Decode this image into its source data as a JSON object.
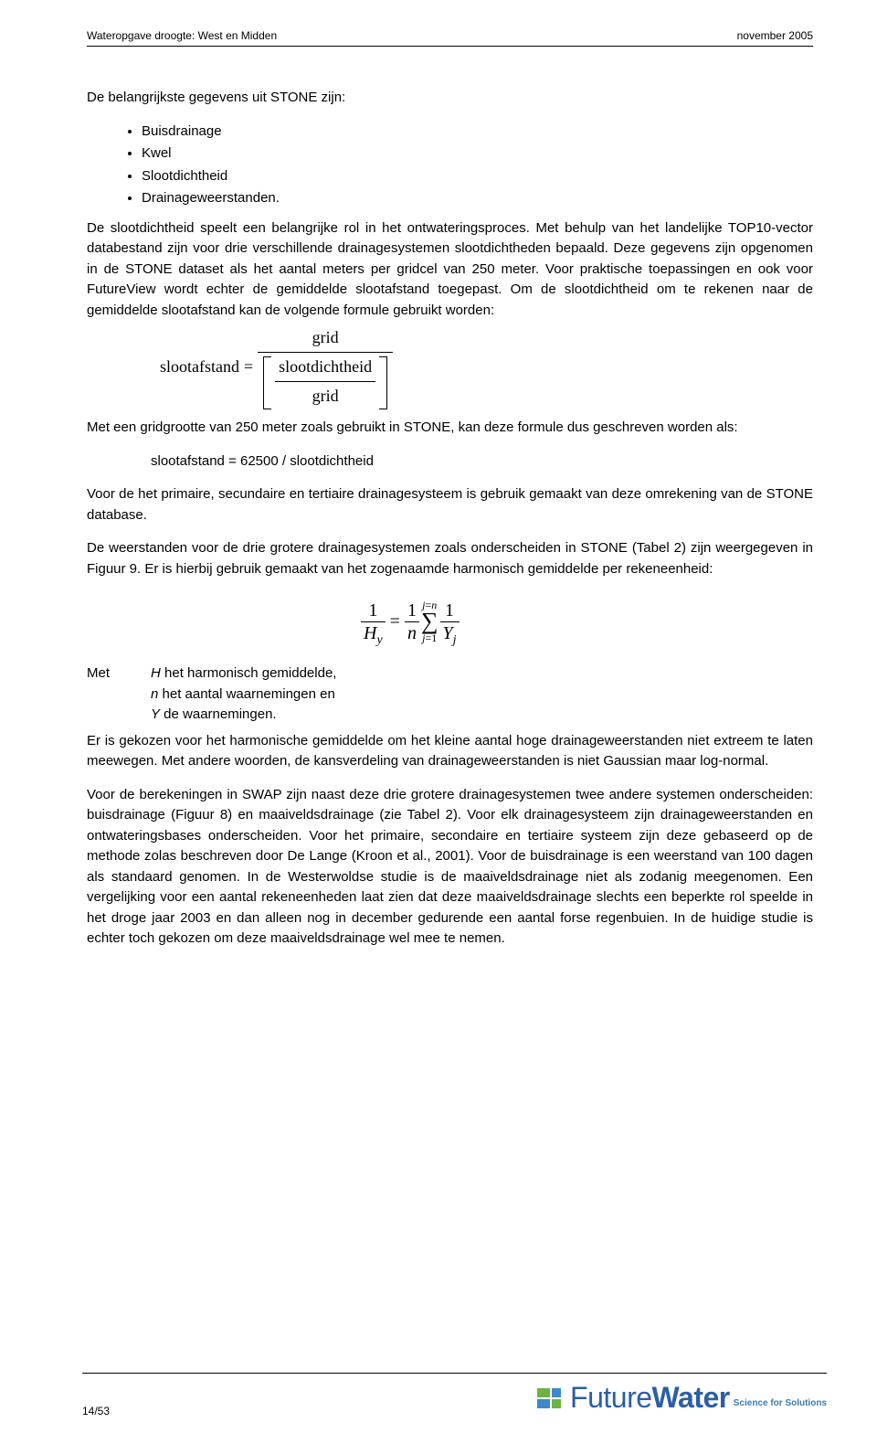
{
  "header": {
    "left": "Wateropgave droogte: West en Midden",
    "right": "november 2005"
  },
  "intro": "De belangrijkste gegevens uit STONE zijn:",
  "bullets": [
    "Buisdrainage",
    "Kwel",
    "Slootdichtheid",
    "Drainageweerstanden."
  ],
  "para1": "De slootdichtheid speelt een belangrijke rol in het ontwateringsproces. Met behulp van het landelijke TOP10-vector databestand zijn voor drie verschillende drainagesystemen slootdichtheden bepaald. Deze gegevens zijn opgenomen in de STONE dataset als het aantal meters per gridcel van 250 meter. Voor praktische toepassingen en ook voor FutureView wordt echter de gemiddelde slootafstand toegepast. Om de slootdichtheid om te rekenen naar de gemiddelde slootafstand kan de volgende formule gebruikt worden:",
  "formula1": {
    "lhs": "slootafstand",
    "num": "grid",
    "den_num": "slootdichtheid",
    "den_den": "grid"
  },
  "para2": "Met een gridgrootte van 250 meter zoals gebruikt in STONE, kan deze formule dus geschreven worden als:",
  "formula2": "slootafstand = 62500 / slootdichtheid",
  "para3": "Voor de het primaire, secundaire en tertiaire drainagesysteem is gebruik gemaakt van deze omrekening van de STONE database.",
  "para4": "De weerstanden voor de drie grotere drainagesystemen zoals onderscheiden in STONE (Tabel 2) zijn weergegeven in Figuur 9. Er is hierbij gebruik gemaakt van het zogenaamde harmonisch gemiddelde per rekeneenheid:",
  "met_label": "Met",
  "met_line1_var": "H",
  "met_line1_text": " het harmonisch gemiddelde,",
  "met_line2_var": "n",
  "met_line2_text": " het aantal waarnemingen en",
  "met_line3_var": "Y",
  "met_line3_text": " de waarnemingen.",
  "para5": "Er is gekozen voor het harmonische gemiddelde om het kleine aantal hoge drainageweerstanden niet extreem te laten meewegen. Met andere woorden, de kansverdeling van drainageweerstanden is niet Gaussian maar log-normal.",
  "para6": "Voor de berekeningen in SWAP zijn naast deze drie grotere drainagesystemen twee andere systemen onderscheiden: buisdrainage (Figuur 8) en maaiveldsdrainage (zie Tabel 2). Voor elk drainagesysteem zijn drainageweerstanden en ontwateringsbases onderscheiden. Voor het primaire, secondaire en tertiaire systeem zijn deze gebaseerd op de methode zolas beschreven door De Lange (Kroon et al., 2001). Voor de buisdrainage is een weerstand van 100 dagen als standaard genomen. In de Westerwoldse studie is de maaiveldsdrainage niet als zodanig meegenomen. Een vergelijking voor een aantal rekeneenheden laat zien dat deze maaiveldsdrainage slechts een beperkte rol speelde in het droge jaar 2003 en dan alleen nog in december gedurende een aantal forse regenbuien. In de huidige studie is echter toch gekozen om deze maaiveldsdrainage wel mee te nemen.",
  "footer": {
    "page_number": "14/53",
    "logo_light": "Future",
    "logo_bold": "Water",
    "logo_tagline": "Science for Solutions"
  }
}
